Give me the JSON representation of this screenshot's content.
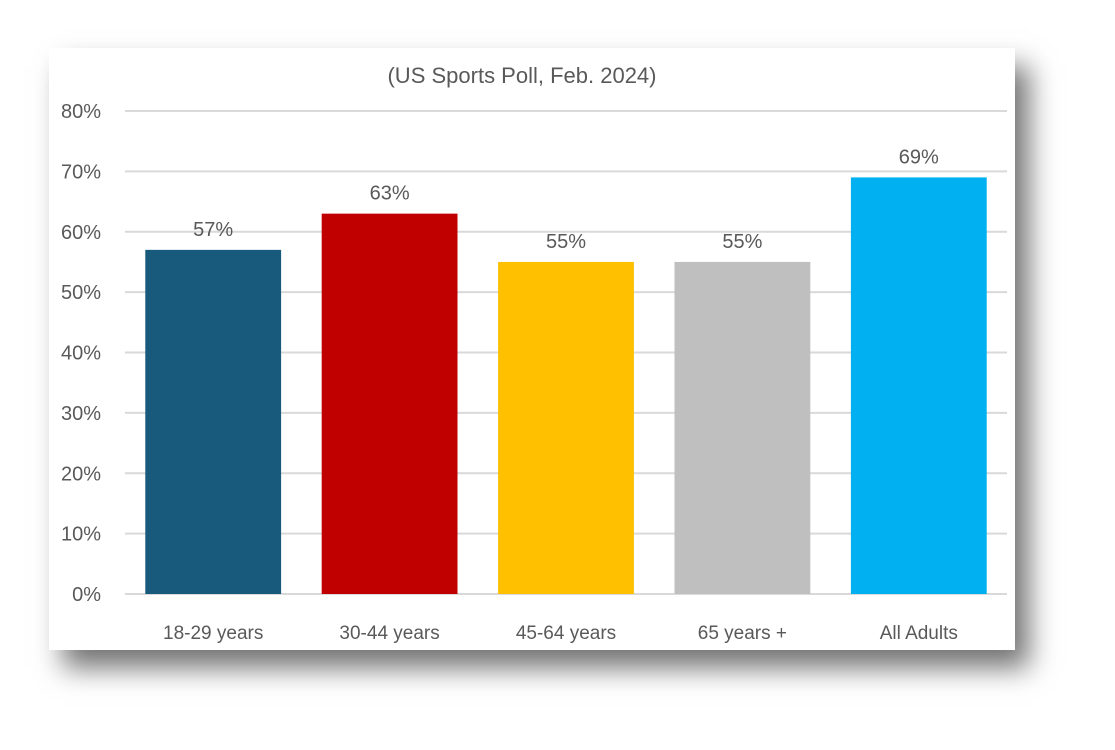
{
  "chart_data": {
    "type": "bar",
    "title": "(US Sports Poll, Feb. 2024)",
    "xlabel": "",
    "ylabel": "",
    "categories": [
      "18-29 years",
      "30-44 years",
      "45-64 years",
      "65 years +",
      "All Adults"
    ],
    "values": [
      57,
      63,
      55,
      55,
      69
    ],
    "data_labels": [
      "57%",
      "63%",
      "55%",
      "55%",
      "69%"
    ],
    "colors": [
      "#175a7c",
      "#c00000",
      "#ffc000",
      "#bfbfbf",
      "#00b0f0"
    ],
    "ylim": [
      0,
      80
    ],
    "yticks": [
      0,
      10,
      20,
      30,
      40,
      50,
      60,
      70,
      80
    ],
    "ytick_labels": [
      "0%",
      "10%",
      "20%",
      "30%",
      "40%",
      "50%",
      "60%",
      "70%",
      "80%"
    ],
    "grid": true,
    "gridline_color": "#d9d9d9",
    "legend": "none"
  }
}
